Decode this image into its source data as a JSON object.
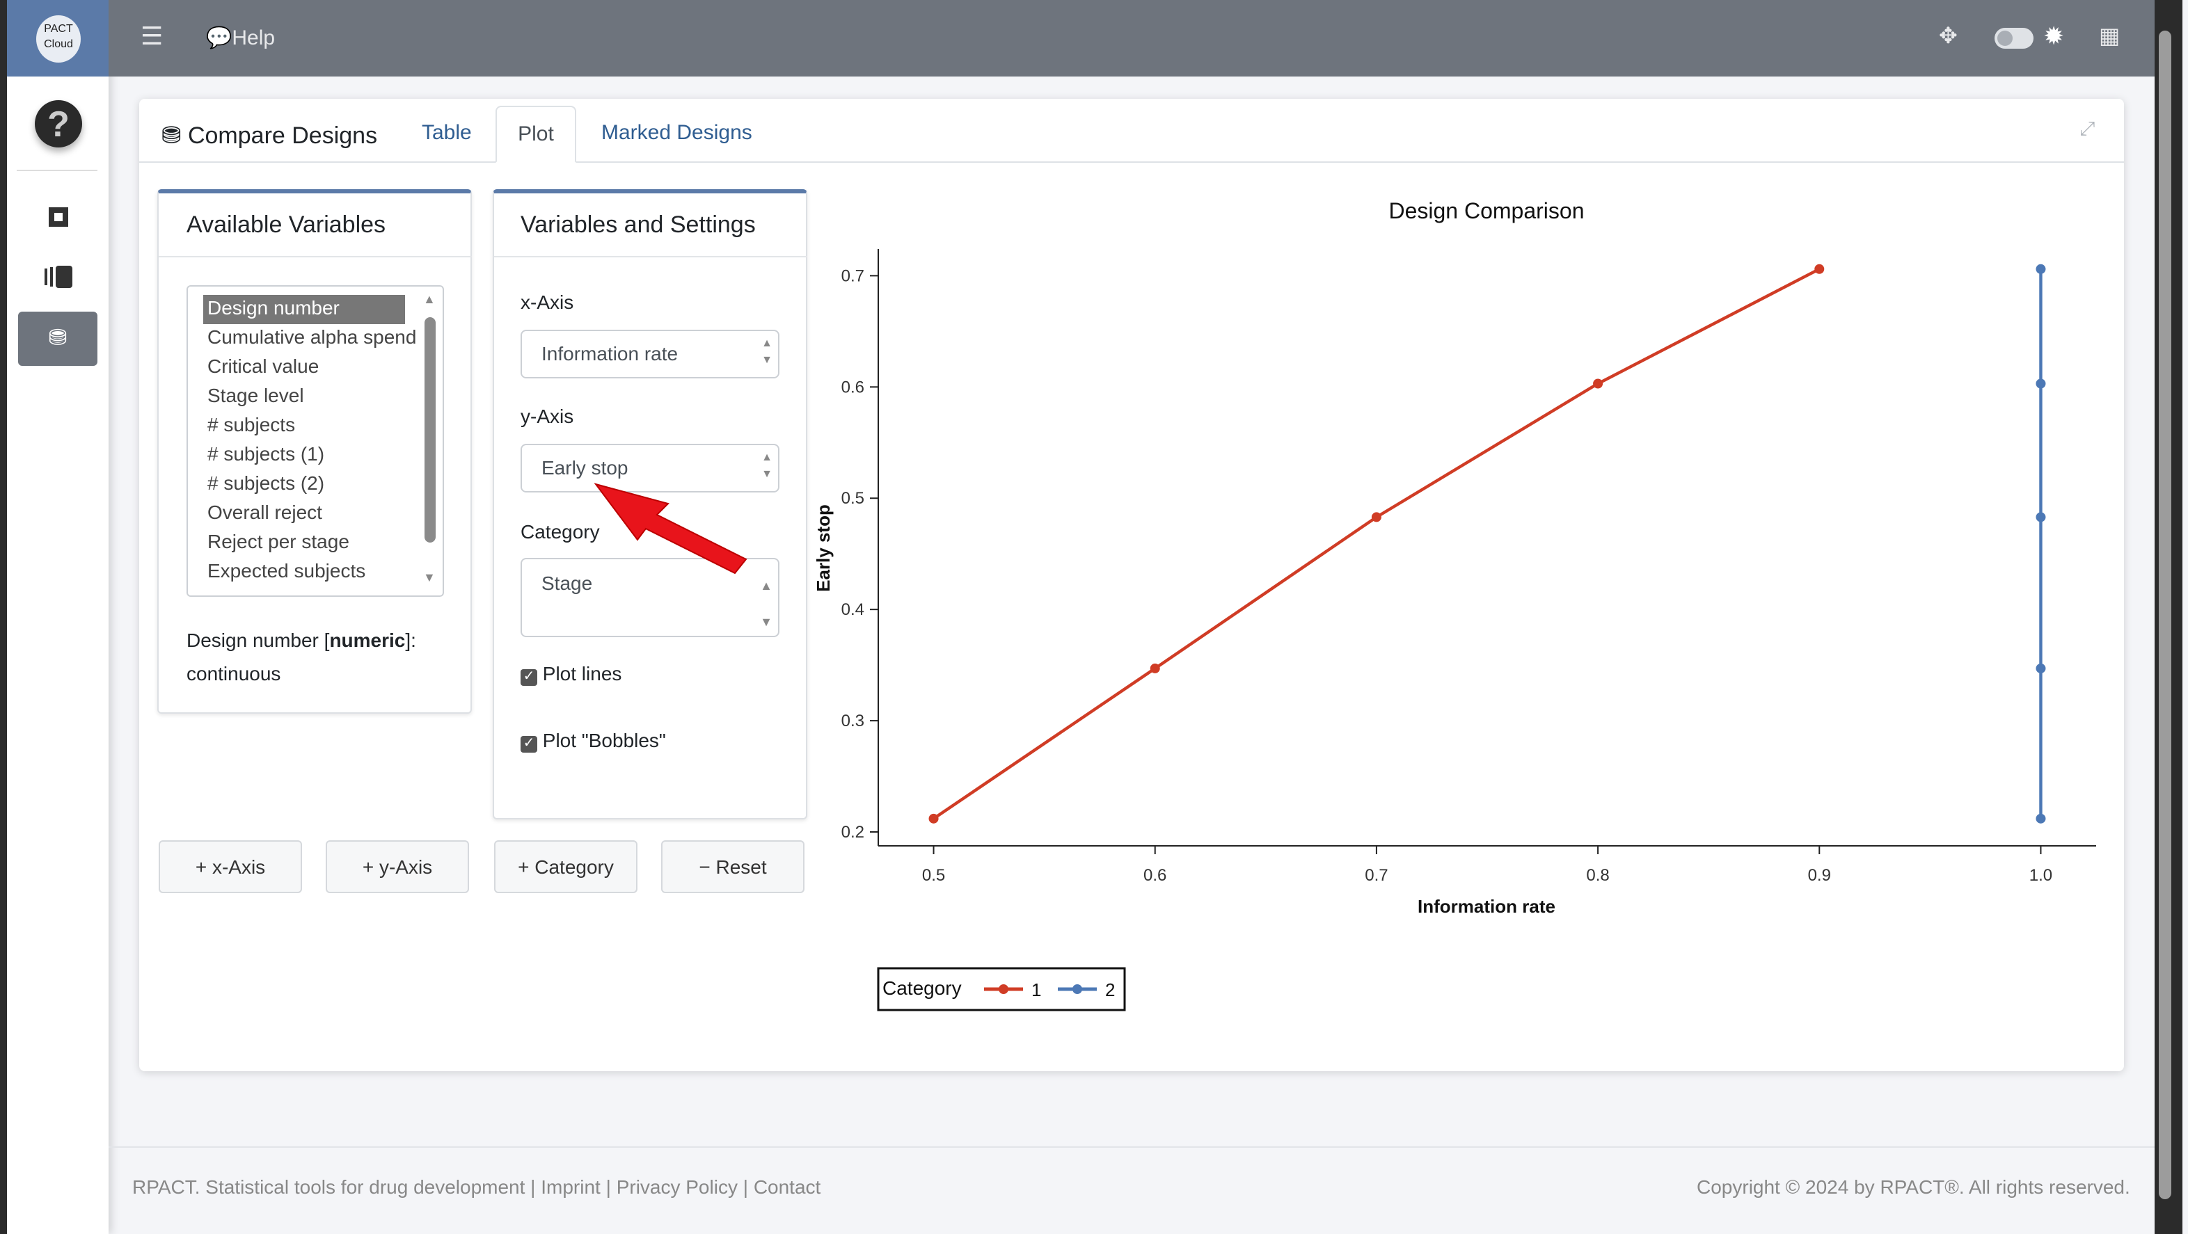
{
  "app": {
    "logo_text": "PACT Cloud",
    "help_label": "Help"
  },
  "nav": {
    "menu_icon": "hamburger-icon",
    "items": [
      "help-circle-icon",
      "report-icon",
      "book-icon",
      "compare-designs-icon"
    ]
  },
  "card": {
    "title": "Compare Designs",
    "tabs": [
      {
        "label": "Table"
      },
      {
        "label": "Plot",
        "active": true
      },
      {
        "label": "Marked Designs"
      }
    ]
  },
  "available": {
    "title": "Available Variables",
    "items": [
      "Design number",
      "Cumulative alpha spend",
      "Critical value",
      "Stage level",
      "# subjects",
      "# subjects (1)",
      "# subjects (2)",
      "Overall reject",
      "Reject per stage",
      "Expected subjects"
    ],
    "selected": "Design number",
    "desc_name": "Design number",
    "desc_type": "numeric",
    "desc_kind": "continuous"
  },
  "settings": {
    "title": "Variables and Settings",
    "x_label": "x-Axis",
    "x_value": "Information rate",
    "y_label": "y-Axis",
    "y_value": "Early stop",
    "cat_label": "Category",
    "cat_value": "Stage",
    "plot_lines": "Plot lines",
    "plot_lines_checked": true,
    "plot_bobbles": "Plot \"Bobbles\"",
    "plot_bobbles_checked": true
  },
  "buttons": {
    "x_axis": "+ x-Axis",
    "y_axis": "+ y-Axis",
    "category": "+ Category",
    "reset": "− Reset"
  },
  "chart_data": {
    "type": "line",
    "title": "Design Comparison",
    "xlabel": "Information rate",
    "ylabel": "Early stop",
    "xlim": [
      0.475,
      1.025
    ],
    "ylim": [
      0.1875,
      0.724
    ],
    "xticks": [
      "0.5",
      "0.6",
      "0.7",
      "0.8",
      "0.9",
      "1.0"
    ],
    "yticks": [
      "0.2",
      "0.3",
      "0.4",
      "0.5",
      "0.6",
      "0.7"
    ],
    "legend_title": "Category",
    "legend_position": "bottom-left",
    "grid": false,
    "series": [
      {
        "name": "1",
        "color": "#d03c25",
        "x": [
          0.5,
          0.6,
          0.7,
          0.8,
          0.9
        ],
        "y": [
          0.212,
          0.347,
          0.483,
          0.603,
          0.706
        ]
      },
      {
        "name": "2",
        "color": "#4c78b5",
        "x": [
          1.0,
          1.0,
          1.0,
          1.0,
          1.0
        ],
        "y": [
          0.212,
          0.347,
          0.483,
          0.603,
          0.706
        ]
      }
    ]
  },
  "footer": {
    "left": "RPACT. Statistical tools for drug development",
    "links": [
      "Imprint",
      "Privacy Policy",
      "Contact"
    ],
    "right": "Copyright © 2024 by RPACT®. All rights reserved."
  }
}
